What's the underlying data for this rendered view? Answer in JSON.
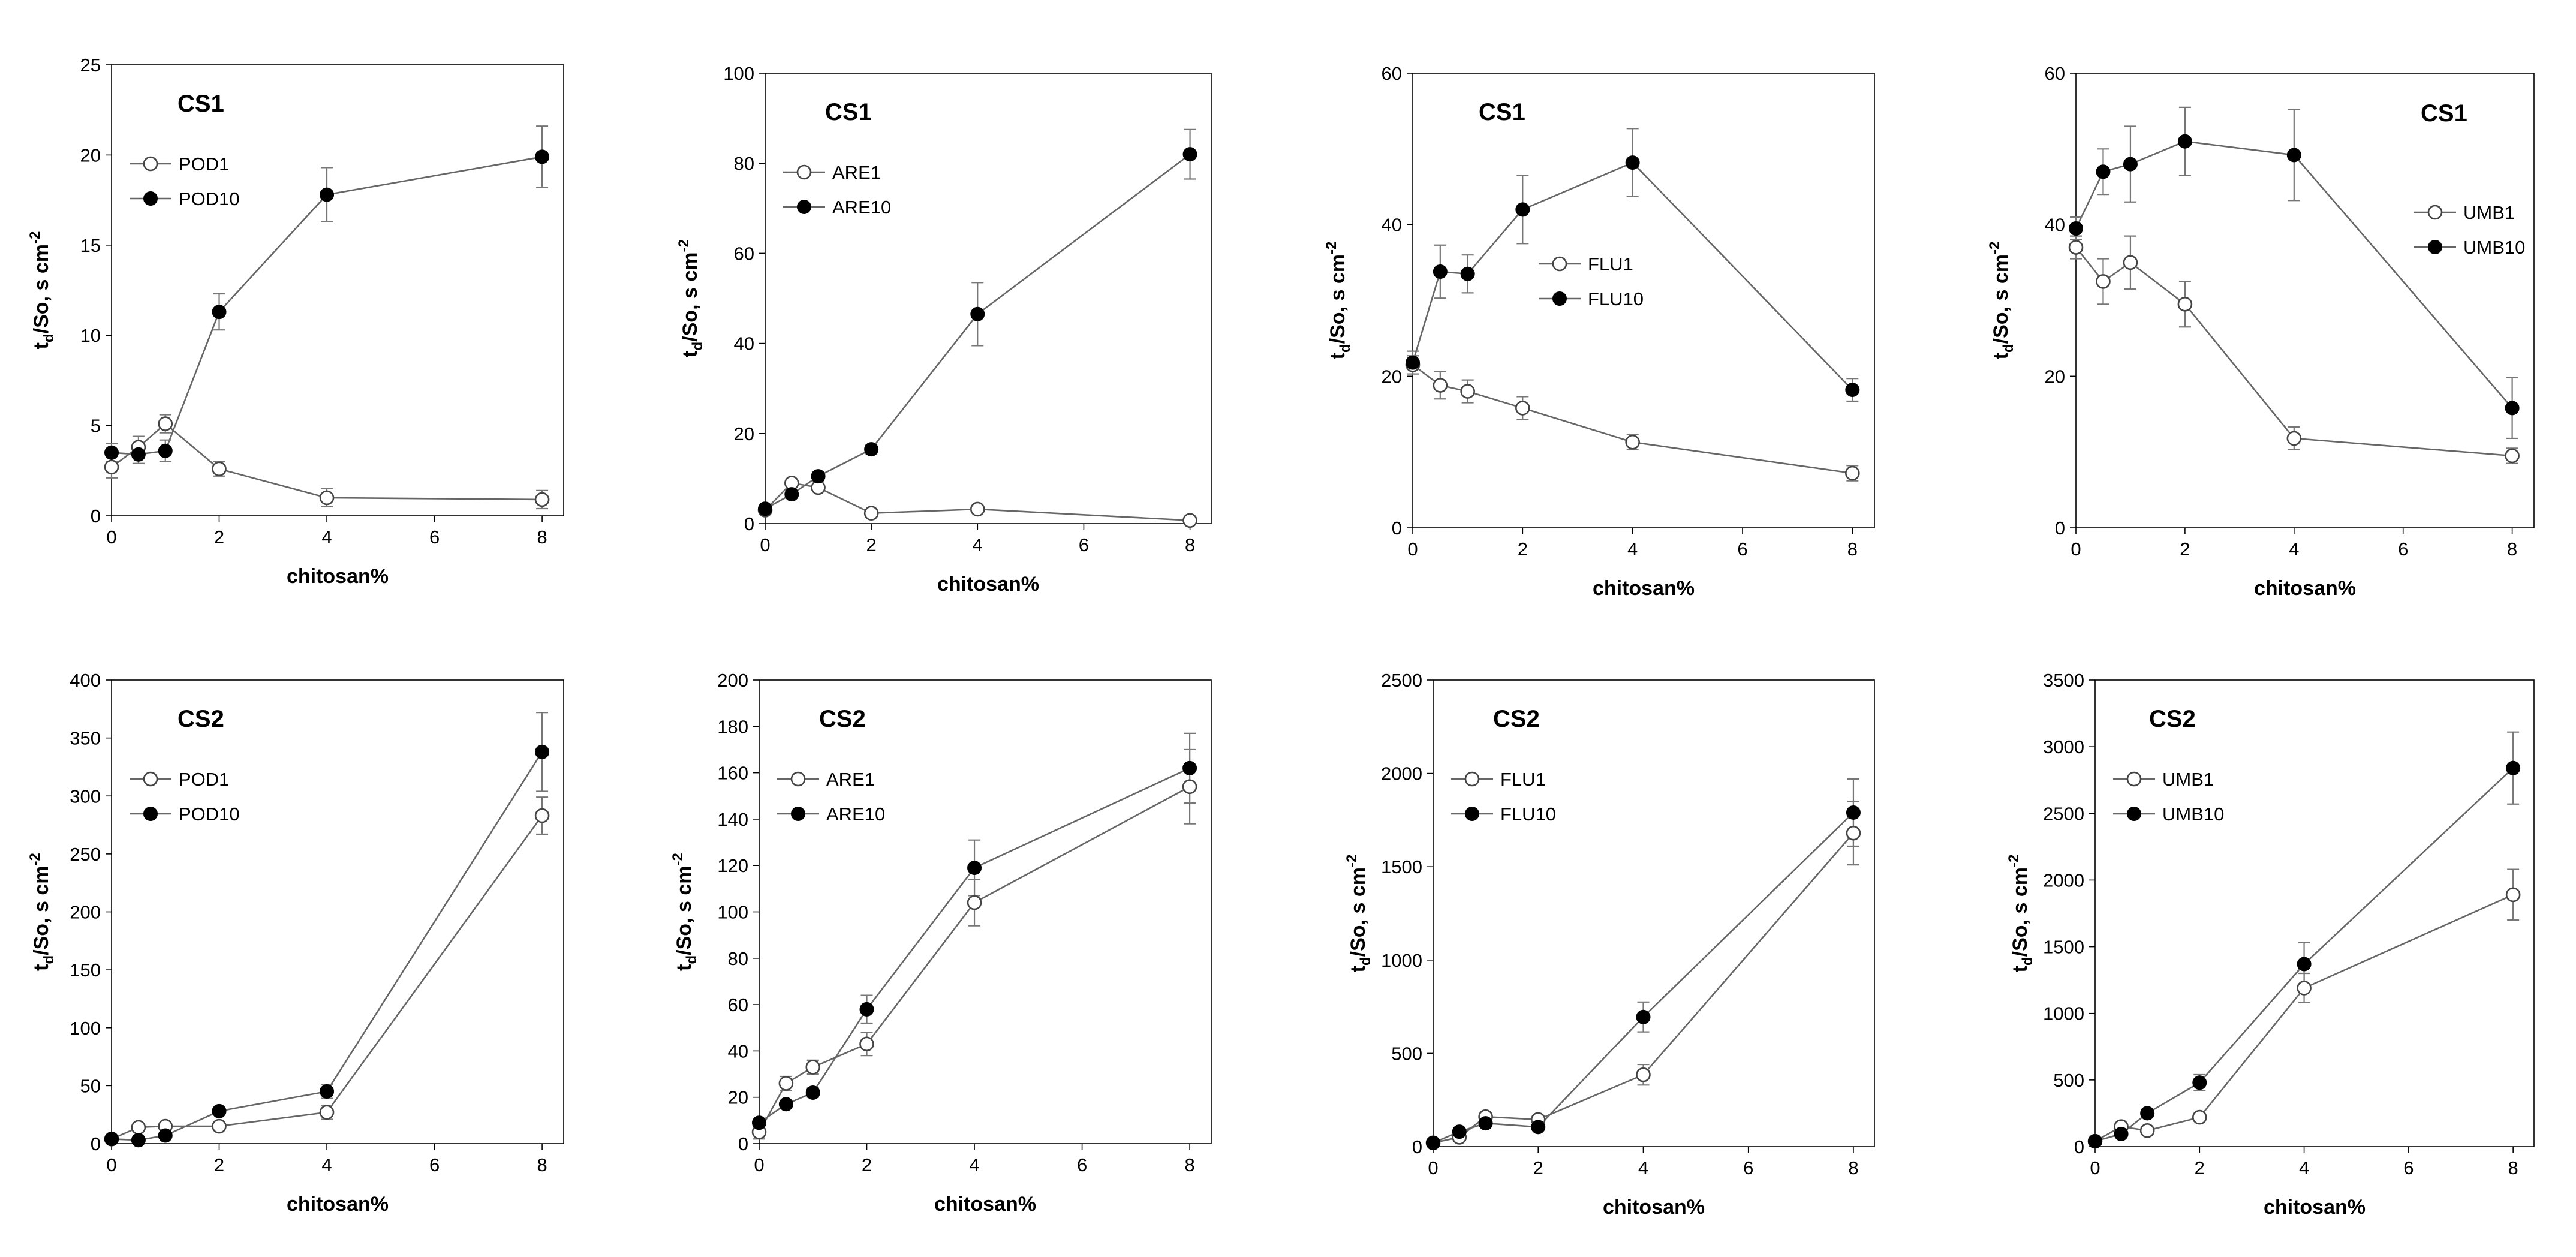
{
  "chart_data": [
    {
      "type": "line",
      "title": "CS1",
      "xlabel": "chitosan%",
      "ylabel": "td/So, s cm-2",
      "ylabel_parts": {
        "t": "t",
        "sub": "d",
        "rest": "/So, s cm",
        "sup": "-2"
      },
      "xlim": [
        0,
        8.4
      ],
      "ylim": [
        0,
        25
      ],
      "xticks": [
        0,
        2,
        4,
        6,
        8
      ],
      "yticks": [
        0,
        5,
        10,
        15,
        20,
        25
      ],
      "legend": "upper-left",
      "x": [
        0,
        0.5,
        1,
        2,
        4,
        8
      ],
      "series": [
        {
          "name": "POD1",
          "marker": "open",
          "values": [
            2.7,
            3.8,
            5.1,
            2.6,
            1.0,
            0.9
          ],
          "errors": [
            0.6,
            0.6,
            0.5,
            0.4,
            0.5,
            0.5
          ]
        },
        {
          "name": "POD10",
          "marker": "filled",
          "values": [
            3.5,
            3.4,
            3.6,
            11.3,
            17.8,
            19.9
          ],
          "errors": [
            0.5,
            0.5,
            0.6,
            1.0,
            1.5,
            1.7
          ]
        }
      ]
    },
    {
      "type": "line",
      "title": "CS1",
      "xlabel": "chitosan%",
      "ylabel": "td/So, s cm-2",
      "ylabel_parts": {
        "t": "t",
        "sub": "d",
        "rest": "/So, s cm",
        "sup": "-2"
      },
      "xlim": [
        0,
        8.4
      ],
      "ylim": [
        0,
        100
      ],
      "xticks": [
        0,
        2,
        4,
        6,
        8
      ],
      "yticks": [
        0,
        20,
        40,
        60,
        80,
        100
      ],
      "legend": "upper-left",
      "x": [
        0,
        0.5,
        1,
        2,
        4,
        8
      ],
      "series": [
        {
          "name": "ARE1",
          "marker": "open",
          "values": [
            3,
            9,
            8,
            2.3,
            3.2,
            0.7
          ],
          "errors": [
            0.5,
            0.8,
            0.8,
            0.5,
            0.5,
            0.5
          ]
        },
        {
          "name": "ARE10",
          "marker": "filled",
          "values": [
            3.3,
            6.5,
            10.5,
            16.5,
            46.5,
            82
          ],
          "errors": [
            0.5,
            0.8,
            1,
            1,
            7,
            5.5
          ]
        }
      ]
    },
    {
      "type": "line",
      "title": "CS1",
      "xlabel": "chitosan%",
      "ylabel": "td/So, s cm-2",
      "ylabel_parts": {
        "t": "t",
        "sub": "d",
        "rest": "/So, s cm",
        "sup": "-2"
      },
      "xlim": [
        0,
        8.4
      ],
      "ylim": [
        0,
        60
      ],
      "xticks": [
        0,
        2,
        4,
        6,
        8
      ],
      "yticks": [
        0,
        20,
        40,
        60
      ],
      "legend": "center-left",
      "x": [
        0,
        0.5,
        1,
        2,
        4,
        8
      ],
      "series": [
        {
          "name": "FLU1",
          "marker": "open",
          "values": [
            21.5,
            18.8,
            18,
            15.8,
            11.3,
            7.2
          ],
          "errors": [
            1.2,
            1.8,
            1.5,
            1.5,
            1,
            1
          ]
        },
        {
          "name": "FLU10",
          "marker": "filled",
          "values": [
            21.8,
            33.8,
            33.5,
            42,
            48.2,
            18.2
          ],
          "errors": [
            1.5,
            3.5,
            2.5,
            4.5,
            4.5,
            1.5
          ]
        }
      ]
    },
    {
      "type": "line",
      "title": "CS1",
      "xlabel": "chitosan%",
      "ylabel": "td/So, s cm-2",
      "ylabel_parts": {
        "t": "t",
        "sub": "d",
        "rest": "/So, s cm",
        "sup": "-2"
      },
      "xlim": [
        0,
        8.4
      ],
      "ylim": [
        0,
        60
      ],
      "xticks": [
        0,
        2,
        4,
        6,
        8
      ],
      "yticks": [
        0,
        20,
        40,
        60
      ],
      "legend": "upper-right",
      "x": [
        0,
        0.5,
        1,
        2,
        4,
        8
      ],
      "series": [
        {
          "name": "UMB1",
          "marker": "open",
          "values": [
            37,
            32.5,
            35,
            29.5,
            11.8,
            9.5
          ],
          "errors": [
            1.5,
            3,
            3.5,
            3,
            1.5,
            1
          ]
        },
        {
          "name": "UMB10",
          "marker": "filled",
          "values": [
            39.5,
            47,
            48,
            51,
            49.2,
            15.8
          ],
          "errors": [
            1.5,
            3,
            5,
            4.5,
            6,
            4
          ]
        }
      ]
    },
    {
      "type": "line",
      "title": "CS2",
      "xlabel": "chitosan%",
      "ylabel": "td/So, s cm-2",
      "ylabel_parts": {
        "t": "t",
        "sub": "d",
        "rest": "/So, s cm",
        "sup": "-2"
      },
      "xlim": [
        0,
        8.4
      ],
      "ylim": [
        0,
        400
      ],
      "xticks": [
        0,
        2,
        4,
        6,
        8
      ],
      "yticks": [
        0,
        50,
        100,
        150,
        200,
        250,
        300,
        350,
        400
      ],
      "legend": "upper-left",
      "x": [
        0,
        0.5,
        1,
        2,
        4,
        8
      ],
      "series": [
        {
          "name": "POD1",
          "marker": "open",
          "values": [
            4,
            14,
            15,
            15,
            27,
            283
          ],
          "errors": [
            1,
            2,
            2,
            2,
            6,
            16
          ]
        },
        {
          "name": "POD10",
          "marker": "filled",
          "values": [
            4,
            3,
            7,
            28,
            45,
            338
          ],
          "errors": [
            1,
            1,
            1,
            3,
            6,
            34
          ]
        }
      ]
    },
    {
      "type": "line",
      "title": "CS2",
      "xlabel": "chitosan%",
      "ylabel": "td/So, s cm-2",
      "ylabel_parts": {
        "t": "t",
        "sub": "d",
        "rest": "/So, s cm",
        "sup": "-2"
      },
      "xlim": [
        0,
        8.4
      ],
      "ylim": [
        0,
        200
      ],
      "xticks": [
        0,
        2,
        4,
        6,
        8
      ],
      "yticks": [
        0,
        20,
        40,
        60,
        80,
        100,
        120,
        140,
        160,
        180,
        200
      ],
      "legend": "upper-left",
      "x": [
        0,
        0.5,
        1,
        2,
        4,
        8
      ],
      "series": [
        {
          "name": "ARE1",
          "marker": "open",
          "values": [
            5,
            26,
            33,
            43,
            104,
            154
          ],
          "errors": [
            3,
            3,
            3,
            5,
            10,
            16
          ]
        },
        {
          "name": "ARE10",
          "marker": "filled",
          "values": [
            9,
            17,
            22,
            58,
            119,
            162
          ],
          "errors": [
            1,
            1,
            2,
            6,
            12,
            15
          ]
        }
      ]
    },
    {
      "type": "line",
      "title": "CS2",
      "xlabel": "chitosan%",
      "ylabel": "td/So, s cm-2",
      "ylabel_parts": {
        "t": "t",
        "sub": "d",
        "rest": "/So, s cm",
        "sup": "-2"
      },
      "xlim": [
        0,
        8.4
      ],
      "ylim": [
        0,
        2500
      ],
      "xticks": [
        0,
        2,
        4,
        6,
        8
      ],
      "yticks": [
        0,
        500,
        1000,
        1500,
        2000,
        2500
      ],
      "legend": "upper-left",
      "x": [
        0,
        0.5,
        1,
        2,
        4,
        8
      ],
      "series": [
        {
          "name": "FLU1",
          "marker": "open",
          "values": [
            20,
            50,
            160,
            145,
            385,
            1680
          ],
          "errors": [
            5,
            10,
            15,
            15,
            55,
            170
          ]
        },
        {
          "name": "FLU10",
          "marker": "filled",
          "values": [
            20,
            80,
            125,
            105,
            695,
            1790
          ],
          "errors": [
            5,
            10,
            15,
            15,
            80,
            180
          ]
        }
      ]
    },
    {
      "type": "line",
      "title": "CS2",
      "xlabel": "chitosan%",
      "ylabel": "td/So, s cm-2",
      "ylabel_parts": {
        "t": "t",
        "sub": "d",
        "rest": "/So, s cm",
        "sup": "-2"
      },
      "xlim": [
        0,
        8.4
      ],
      "ylim": [
        0,
        3500
      ],
      "xticks": [
        0,
        2,
        4,
        6,
        8
      ],
      "yticks": [
        0,
        500,
        1000,
        1500,
        2000,
        2500,
        3000,
        3500
      ],
      "legend": "upper-left",
      "x": [
        0,
        0.5,
        1,
        2,
        4,
        8
      ],
      "series": [
        {
          "name": "UMB1",
          "marker": "open",
          "values": [
            40,
            150,
            120,
            220,
            1190,
            1890
          ],
          "errors": [
            10,
            20,
            20,
            30,
            110,
            190
          ]
        },
        {
          "name": "UMB10",
          "marker": "filled",
          "values": [
            40,
            95,
            250,
            480,
            1370,
            2840
          ],
          "errors": [
            10,
            15,
            30,
            60,
            160,
            270
          ]
        }
      ]
    }
  ]
}
